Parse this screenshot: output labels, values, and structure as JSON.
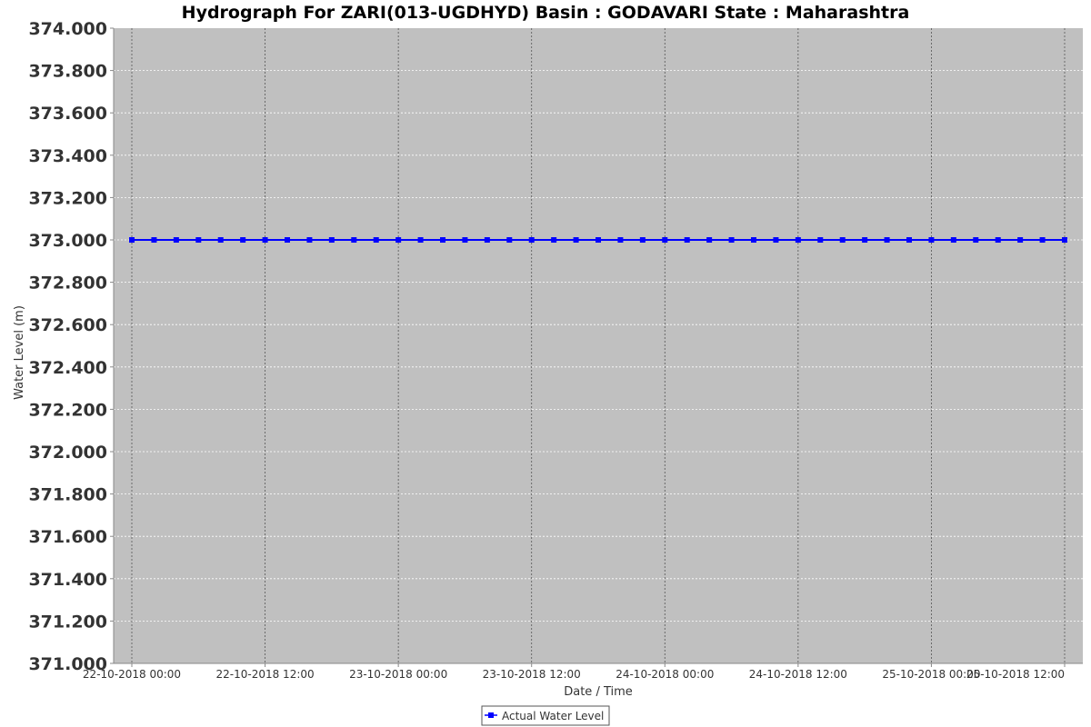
{
  "chart_data": {
    "type": "line",
    "title": "Hydrograph For ZARI(013-UGDHYD) Basin : GODAVARI State : Maharashtra",
    "xlabel": "Date / Time",
    "ylabel": "Water Level (m)",
    "ylim": [
      371.0,
      374.0
    ],
    "yticks": [
      "371.000",
      "371.200",
      "371.400",
      "371.600",
      "371.800",
      "372.000",
      "372.200",
      "372.400",
      "372.600",
      "372.800",
      "373.000",
      "373.200",
      "373.400",
      "373.600",
      "373.800",
      "374.000"
    ],
    "xlim": [
      "22-10-2018 00:00",
      "25-10-2018 12:00"
    ],
    "xticks": [
      "22-10-2018 00:00",
      "22-10-2018 12:00",
      "23-10-2018 00:00",
      "23-10-2018 12:00",
      "24-10-2018 00:00",
      "24-10-2018 12:00",
      "25-10-2018 00:00",
      "25-10-2018 12:00"
    ],
    "grid": true,
    "legend_position": "bottom-center",
    "series": [
      {
        "name": "Actual Water Level",
        "color": "#0000ff",
        "marker": "square",
        "x_start": "22-10-2018 00:00",
        "x_interval_hours": 1,
        "values": [
          373.0,
          373.0,
          373.0,
          373.0,
          373.0,
          373.0,
          373.0,
          373.0,
          373.0,
          373.0,
          373.0,
          373.0,
          373.0,
          373.0,
          373.0,
          373.0,
          373.0,
          373.0,
          373.0,
          373.0,
          373.0,
          373.0,
          373.0,
          373.0,
          373.0,
          373.0,
          373.0,
          373.0,
          373.0,
          373.0,
          373.0,
          373.0,
          373.0,
          373.0,
          373.0,
          373.0,
          373.0,
          373.0,
          373.0,
          373.0,
          373.0,
          373.0,
          373.0,
          373.0,
          373.0,
          373.0,
          373.0,
          373.0,
          373.0,
          373.0,
          373.0,
          373.0,
          373.0,
          373.0,
          373.0,
          373.0,
          373.0,
          373.0,
          373.0,
          373.0,
          373.0,
          373.0,
          373.0,
          373.0,
          373.0,
          373.0,
          373.0,
          373.0,
          373.0,
          373.0,
          373.0,
          373.0,
          373.0,
          373.0,
          373.0,
          373.0,
          373.0,
          373.0,
          373.0,
          373.0,
          373.0,
          373.0,
          373.0,
          373.0,
          373.0
        ]
      }
    ],
    "colors": {
      "plot_background": "#c0c0c0",
      "grid_horizontal": "#ffffff",
      "grid_vertical": "#555555",
      "axis": "#888888"
    }
  }
}
